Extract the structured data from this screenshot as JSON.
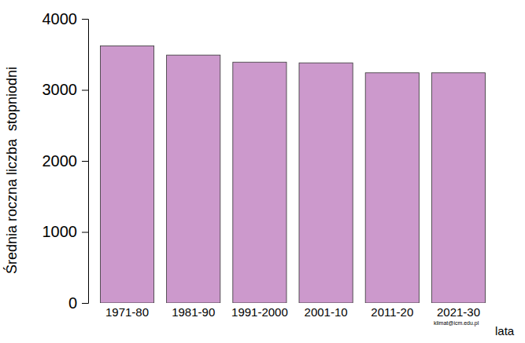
{
  "chart_data": {
    "type": "bar",
    "y_label": "Średnia roczna liczba  stopniodni",
    "x_label": "lata",
    "annotations": [
      "klimat@icm.edu.pl"
    ],
    "categories": [
      "1971-80",
      "1981-90",
      "1991-2000",
      "2001-10",
      "2011-20",
      "2021-30"
    ],
    "values": [
      3620,
      3490,
      3390,
      3380,
      3240,
      3240
    ],
    "color": "#cc99cc",
    "ylim": [
      0,
      4000
    ],
    "yticks": [
      0,
      1000,
      2000,
      3000,
      4000
    ],
    "grid": false
  }
}
